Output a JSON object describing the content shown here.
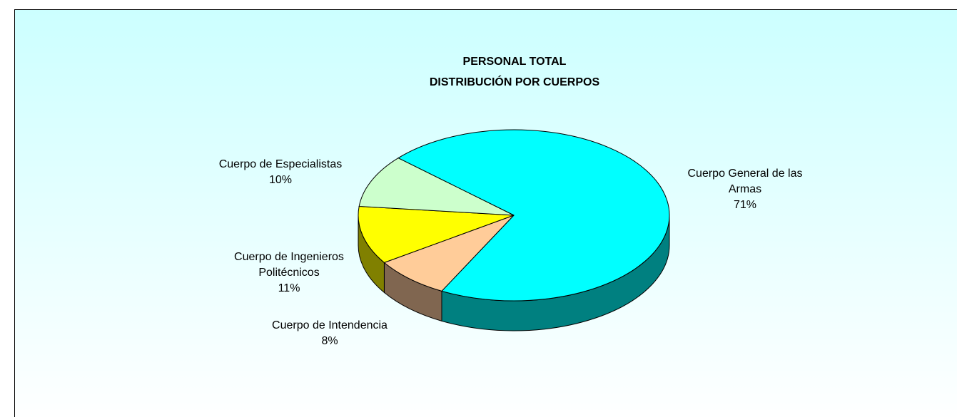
{
  "chart_data": {
    "type": "pie3d",
    "title": "PERSONAL TOTAL",
    "subtitle": "DISTRIBUCIÓN POR CUERPOS",
    "categories": [
      "Cuerpo General de las Armas",
      "Cuerpo de Intendencia",
      "Cuerpo de Ingenieros Politécnicos",
      "Cuerpo de Especialistas"
    ],
    "values": [
      71,
      8,
      11,
      10
    ],
    "value_labels": [
      "71%",
      "8%",
      "11%",
      "10%"
    ],
    "colors": [
      "#00ffff",
      "#ffcc99",
      "#ffff00",
      "#ccffcc"
    ],
    "side_colors": [
      "#008080",
      "#806650",
      "#808000",
      "#668066"
    ]
  }
}
